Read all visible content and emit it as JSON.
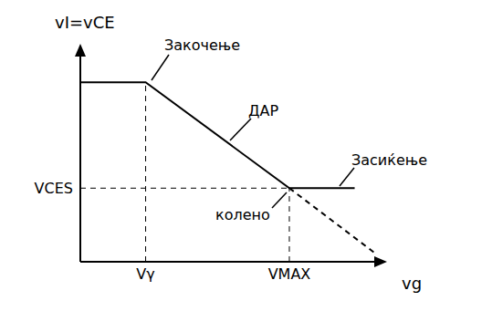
{
  "chart_data": {
    "type": "line",
    "xlabel": "vg",
    "ylabel": "vI=vCE",
    "x": [
      0,
      1,
      3.2,
      4.2
    ],
    "series": [
      {
        "values": [
          3.9,
          3.9,
          1.6,
          1.6
        ],
        "color": "#000000",
        "line_style": "solid"
      },
      {
        "x": [
          3.2,
          4.5
        ],
        "values": [
          1.6,
          0.2
        ],
        "color": "#000000",
        "line_style": "dashed"
      }
    ],
    "xlim": [
      0,
      4.5
    ],
    "ylim": [
      0,
      4.5
    ],
    "xticks": [
      {
        "value": 1,
        "label": "Vγ"
      },
      {
        "value": 3.2,
        "label": "VMAX"
      }
    ],
    "yticks": [
      {
        "value": 1.6,
        "label": "VCES"
      }
    ],
    "grid": false,
    "annotations": [
      "Закочење",
      "ДАР",
      "Засиќење",
      "колено"
    ]
  }
}
